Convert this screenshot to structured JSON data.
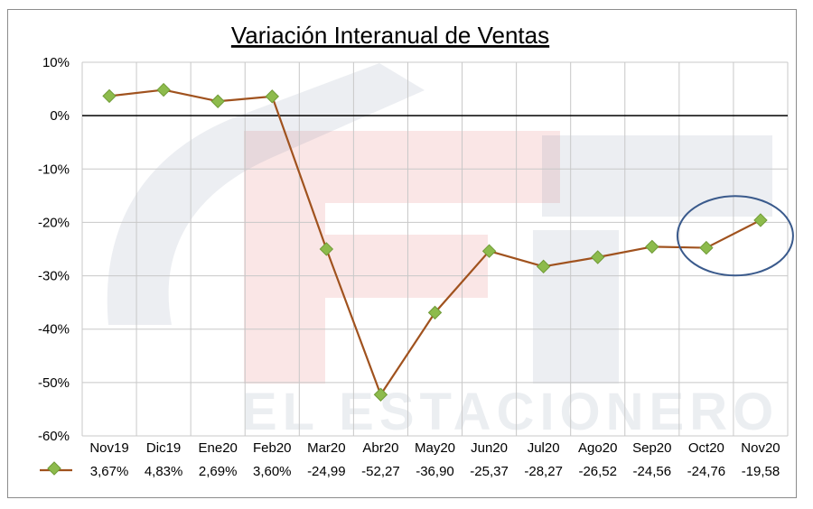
{
  "colors": {
    "line": "#a0521e",
    "marker": "#8dbb4c",
    "marker_stroke": "#6f9a36",
    "grid": "#c8c8c8",
    "highlight_ellipse": "#3a5a8c",
    "watermark_blue": "#6b7f99",
    "watermark_red": "#e57373"
  },
  "watermark": {
    "text": "EL ESTACIONERO"
  },
  "chart_data": {
    "type": "line",
    "title": "Variación Interanual de Ventas",
    "xlabel": "",
    "ylabel": "",
    "ylim": [
      -60,
      10
    ],
    "yticks": [
      10,
      0,
      -10,
      -20,
      -30,
      -40,
      -50,
      -60
    ],
    "ytick_labels": [
      "10%",
      "0%",
      "-10%",
      "-20%",
      "-30%",
      "-40%",
      "-50%",
      "-60%"
    ],
    "grid": true,
    "categories": [
      "Nov19",
      "Dic19",
      "Ene20",
      "Feb20",
      "Mar20",
      "Abr20",
      "May20",
      "Jun20",
      "Jul20",
      "Ago20",
      "Sep20",
      "Oct20",
      "Nov20"
    ],
    "series": [
      {
        "values": [
          3.67,
          4.83,
          2.69,
          3.6,
          -24.99,
          -52.27,
          -36.9,
          -25.37,
          -28.27,
          -26.52,
          -24.56,
          -24.76,
          -19.58
        ],
        "labels": [
          "3,67%",
          "4,83%",
          "2,69%",
          "3,60%",
          "-24,99",
          "-52,27",
          "-36,90",
          "-25,37",
          "-28,27",
          "-26,52",
          "-24,56",
          "-24,76",
          "-19,58"
        ]
      }
    ],
    "data_table": true,
    "highlight": {
      "categories": [
        "Oct20",
        "Nov20"
      ],
      "shape": "ellipse"
    }
  }
}
